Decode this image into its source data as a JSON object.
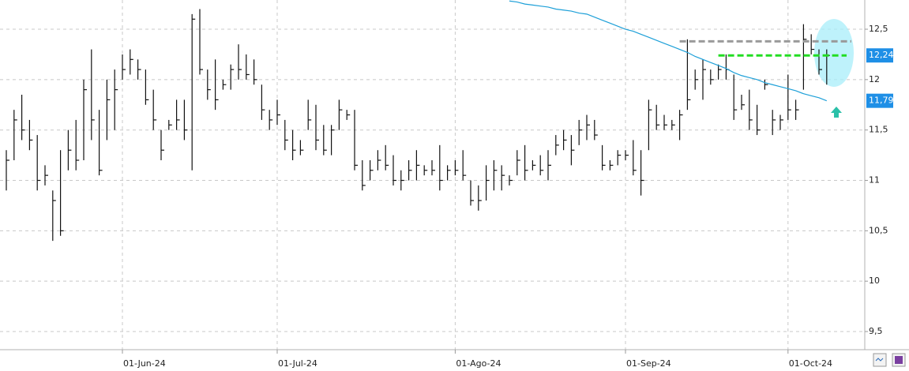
{
  "chart_data": {
    "type": "ohlc",
    "categories": [
      null,
      null,
      null,
      null,
      null,
      null,
      null,
      null,
      null,
      null,
      null,
      null,
      null,
      null,
      null,
      "01-Jun-24",
      null,
      null,
      null,
      null,
      null,
      null,
      null,
      null,
      null,
      null,
      null,
      null,
      null,
      null,
      null,
      null,
      null,
      null,
      null,
      "01-Jul-24",
      null,
      null,
      null,
      null,
      null,
      null,
      null,
      null,
      null,
      null,
      null,
      null,
      null,
      null,
      null,
      null,
      null,
      null,
      null,
      null,
      null,
      null,
      "01-Ago-24",
      null,
      null,
      null,
      null,
      null,
      null,
      null,
      null,
      null,
      null,
      null,
      null,
      null,
      null,
      null,
      null,
      null,
      null,
      null,
      null,
      null,
      "01-Sep-24",
      null,
      null,
      null,
      null,
      null,
      null,
      null,
      null,
      null,
      null,
      null,
      null,
      null,
      null,
      null,
      null,
      null,
      null,
      null,
      null,
      "01-Oct-24",
      null,
      null,
      null,
      null,
      null
    ],
    "high": [
      11.3,
      11.7,
      11.85,
      11.6,
      11.45,
      11.15,
      10.9,
      11.3,
      11.5,
      11.6,
      12.0,
      12.3,
      11.7,
      12.0,
      12.1,
      12.25,
      12.3,
      12.2,
      12.1,
      11.9,
      11.5,
      11.6,
      11.8,
      11.8,
      12.65,
      12.7,
      12.1,
      12.2,
      12.0,
      12.15,
      12.35,
      12.25,
      12.2,
      11.95,
      11.7,
      11.8,
      11.6,
      11.5,
      11.4,
      11.8,
      11.75,
      11.55,
      11.55,
      11.8,
      11.7,
      11.7,
      11.2,
      11.2,
      11.3,
      11.35,
      11.25,
      11.1,
      11.2,
      11.3,
      11.15,
      11.2,
      11.35,
      11.15,
      11.2,
      11.3,
      11.0,
      10.95,
      11.15,
      11.2,
      11.15,
      11.05,
      11.3,
      11.35,
      11.2,
      11.25,
      11.3,
      11.45,
      11.5,
      11.45,
      11.6,
      11.65,
      11.6,
      11.35,
      11.2,
      11.3,
      11.3,
      11.4,
      11.3,
      11.8,
      11.75,
      11.65,
      11.6,
      11.7,
      12.4,
      12.1,
      12.2,
      12.1,
      12.15,
      12.25,
      12.05,
      11.85,
      11.9,
      11.75,
      12.0,
      11.7,
      11.65,
      12.05,
      11.8,
      12.55,
      12.45,
      12.3,
      12.3
    ],
    "low": [
      10.9,
      11.2,
      11.4,
      11.3,
      10.9,
      10.95,
      10.4,
      10.45,
      11.1,
      11.1,
      11.2,
      11.4,
      11.05,
      11.4,
      11.5,
      12.0,
      12.05,
      12.0,
      11.75,
      11.5,
      11.2,
      11.5,
      11.5,
      11.4,
      11.1,
      12.05,
      11.8,
      11.7,
      11.9,
      11.9,
      12.0,
      12.0,
      11.95,
      11.6,
      11.5,
      11.55,
      11.3,
      11.2,
      11.25,
      11.5,
      11.3,
      11.25,
      11.25,
      11.5,
      11.6,
      11.1,
      10.9,
      11.0,
      11.1,
      11.1,
      10.95,
      10.9,
      11.0,
      11.0,
      11.05,
      11.05,
      10.9,
      11.0,
      11.05,
      11.0,
      10.75,
      10.7,
      10.8,
      10.9,
      10.9,
      10.95,
      11.05,
      11.0,
      11.1,
      11.05,
      11.0,
      11.25,
      11.3,
      11.15,
      11.35,
      11.4,
      11.4,
      11.1,
      11.1,
      11.15,
      11.2,
      11.05,
      10.85,
      11.3,
      11.5,
      11.5,
      11.5,
      11.4,
      11.7,
      11.9,
      11.8,
      11.95,
      12.0,
      12.0,
      11.6,
      11.7,
      11.5,
      11.45,
      11.9,
      11.45,
      11.5,
      11.6,
      11.6,
      11.9,
      12.25,
      12.05,
      11.95
    ],
    "close": [
      11.2,
      11.6,
      11.5,
      11.4,
      11.0,
      11.05,
      10.8,
      10.5,
      11.3,
      11.2,
      11.9,
      11.6,
      11.1,
      11.8,
      11.9,
      12.1,
      12.2,
      12.1,
      11.8,
      11.6,
      11.3,
      11.55,
      11.6,
      11.5,
      12.6,
      12.1,
      11.9,
      11.8,
      11.95,
      12.1,
      12.1,
      12.05,
      12.0,
      11.7,
      11.6,
      11.65,
      11.4,
      11.3,
      11.3,
      11.6,
      11.4,
      11.3,
      11.5,
      11.7,
      11.65,
      11.15,
      10.95,
      11.1,
      11.2,
      11.15,
      11.0,
      11.0,
      11.1,
      11.15,
      11.1,
      11.1,
      11.0,
      11.1,
      11.1,
      11.05,
      10.8,
      10.8,
      11.0,
      11.1,
      11.05,
      11.0,
      11.2,
      11.1,
      11.15,
      11.1,
      11.15,
      11.35,
      11.4,
      11.3,
      11.5,
      11.55,
      11.45,
      11.15,
      11.15,
      11.25,
      11.25,
      11.1,
      11.0,
      11.7,
      11.55,
      11.55,
      11.55,
      11.65,
      11.8,
      12.0,
      12.1,
      12.0,
      12.1,
      12.1,
      11.7,
      11.75,
      11.6,
      11.5,
      11.95,
      11.6,
      11.6,
      11.7,
      11.7,
      12.4,
      12.3,
      12.1,
      12.24
    ],
    "color": "#111111",
    "ma": {
      "color": "#1ea0d8",
      "values": [
        null,
        null,
        null,
        null,
        null,
        null,
        null,
        null,
        null,
        null,
        null,
        null,
        null,
        null,
        null,
        null,
        null,
        null,
        null,
        null,
        null,
        null,
        null,
        null,
        null,
        null,
        null,
        null,
        null,
        null,
        null,
        null,
        null,
        null,
        null,
        null,
        null,
        null,
        null,
        null,
        null,
        null,
        null,
        null,
        null,
        null,
        null,
        null,
        null,
        null,
        null,
        null,
        null,
        null,
        null,
        null,
        null,
        null,
        null,
        null,
        null,
        null,
        null,
        null,
        null,
        12.78,
        12.77,
        12.75,
        12.74,
        12.73,
        12.72,
        12.7,
        12.69,
        12.68,
        12.66,
        12.65,
        12.62,
        12.59,
        12.56,
        12.53,
        12.5,
        12.48,
        12.45,
        12.42,
        12.39,
        12.36,
        12.33,
        12.3,
        12.27,
        12.23,
        12.2,
        12.17,
        12.14,
        12.11,
        12.07,
        12.04,
        12.02,
        12.0,
        11.97,
        11.95,
        11.93,
        11.91,
        11.89,
        11.86,
        11.84,
        11.82,
        11.79
      ]
    },
    "levels": [
      {
        "value": 12.38,
        "color": "#9a9a9a"
      },
      {
        "value": 12.24,
        "color": "#22dd22"
      }
    ],
    "price_labels": [
      {
        "value": 12.24,
        "label": "12,24",
        "color": "#1e8fe6"
      },
      {
        "value": 11.79,
        "label": "11,79",
        "color": "#1e8fe6"
      }
    ],
    "ylim": [
      9.32,
      12.79
    ],
    "yticks": [
      {
        "value": 9.5,
        "label": "9,5"
      },
      10,
      {
        "value": 10.5,
        "label": "10,5"
      },
      11,
      {
        "value": 11.5,
        "label": "11,5"
      },
      12,
      {
        "value": 12.5,
        "label": "12,5"
      }
    ],
    "grid": true
  }
}
